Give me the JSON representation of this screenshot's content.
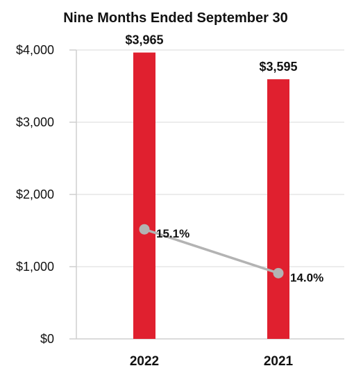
{
  "chart_data": {
    "type": "bar",
    "title": "Nine Months Ended September 30",
    "categories": [
      "2022",
      "2021"
    ],
    "series": [
      {
        "type": "bar",
        "values": [
          3965,
          3595
        ],
        "value_labels": [
          "$3,965",
          "$3,595"
        ],
        "color": "#e0202f"
      },
      {
        "type": "line",
        "values": [
          15.1,
          14.0
        ],
        "value_labels": [
          "15.1%",
          "14.0%"
        ],
        "color": "#b3b3b3"
      }
    ],
    "y_axis": {
      "min": 0,
      "max": 4000,
      "ticks": [
        0,
        1000,
        2000,
        3000,
        4000
      ],
      "tick_labels": [
        "$0",
        "$1,000",
        "$2,000",
        "$3,000",
        "$4,000"
      ]
    },
    "secondary_axis_shown": false,
    "grid": true,
    "legend": "none"
  }
}
